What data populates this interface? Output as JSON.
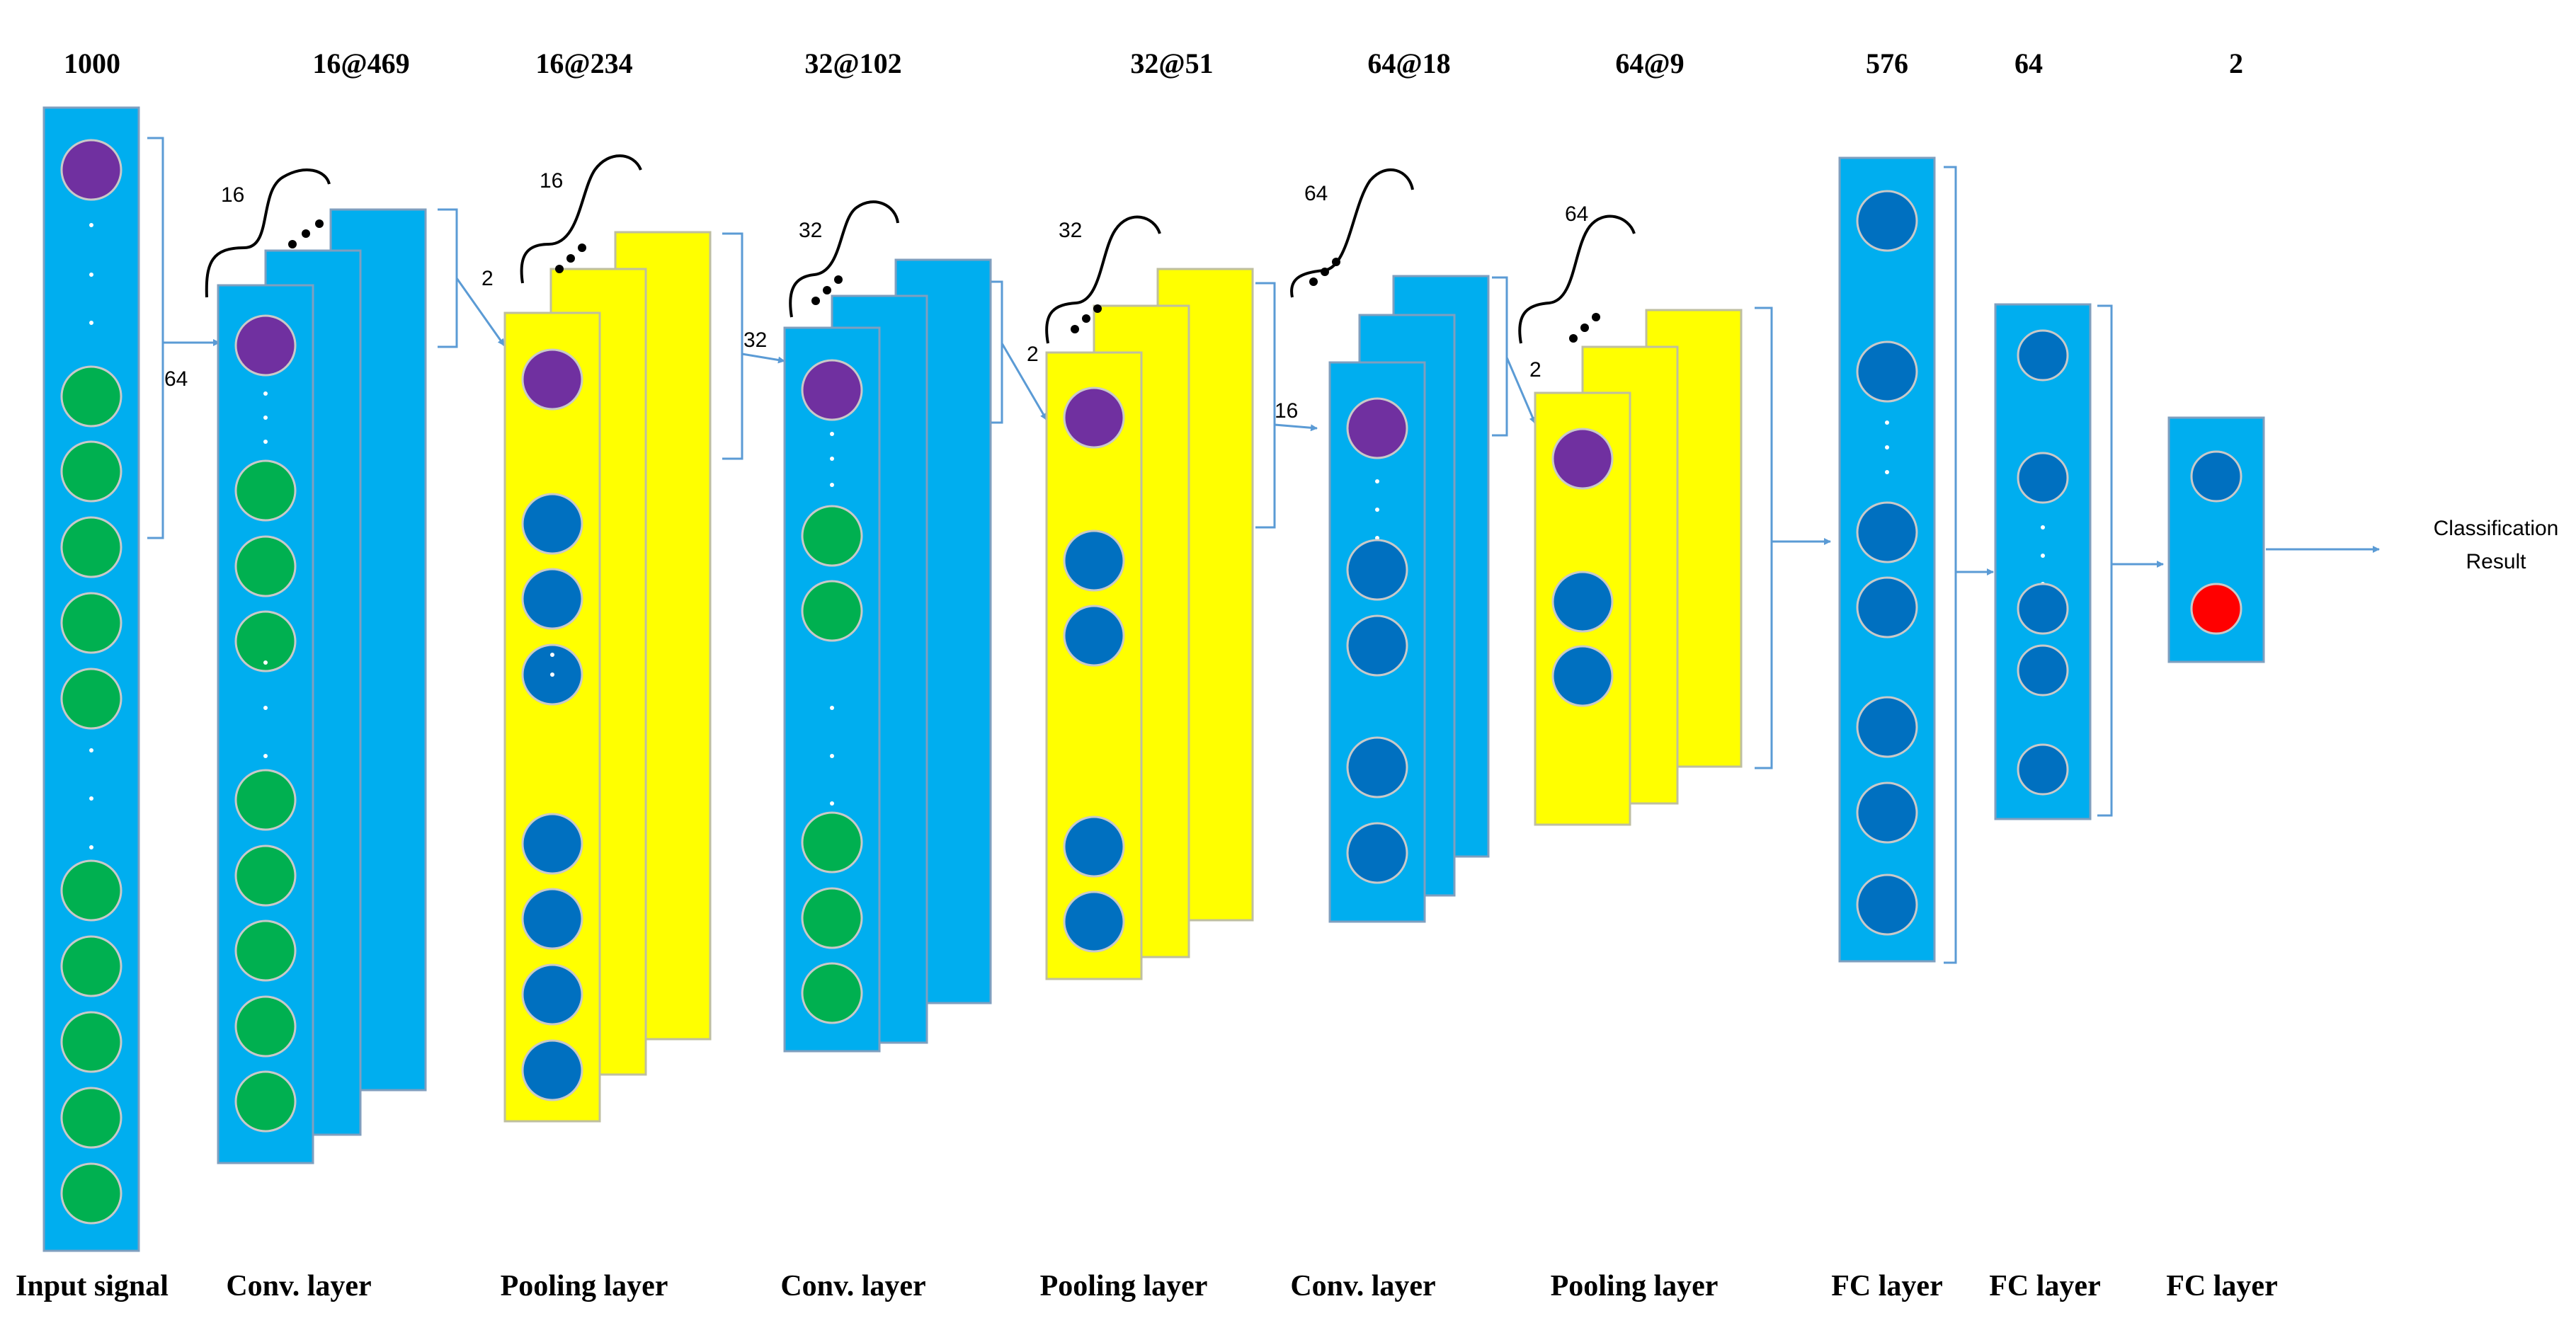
{
  "diagram": {
    "dims": [
      "1000",
      "16@469",
      "16@234",
      "32@102",
      "32@51",
      "64@18",
      "64@9",
      "576",
      "64",
      "2"
    ],
    "layers": [
      "Input signal",
      "Conv. layer",
      "Pooling layer",
      "Conv. layer",
      "Pooling layer",
      "Conv. layer",
      "Pooling layer",
      "FC layer",
      "FC layer",
      "FC layer"
    ],
    "kernel_labels": [
      "64",
      "2",
      "32",
      "2",
      "16",
      "2"
    ],
    "depth_labels": [
      "16",
      "16",
      "32",
      "32",
      "64",
      "64"
    ],
    "output": {
      "line1": "Classification",
      "line2": "Result"
    },
    "colors": {
      "blue_layer": "#00AEEF",
      "yellow_layer": "#FFFF00",
      "green_node": "#00B050",
      "purple_node": "#7030A0",
      "blue_node": "#0070C0",
      "red_node": "#FF0000",
      "arrow": "#5B9BD5"
    }
  }
}
